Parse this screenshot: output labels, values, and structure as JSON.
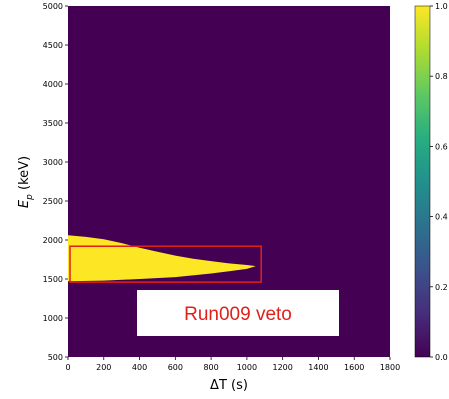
{
  "chart_data": {
    "type": "heatmap",
    "xlabel": "ΔT (s)",
    "ylabel": "E",
    "ylabel_sub": "p",
    "ylabel_unit": " (keV)",
    "xlim": [
      0,
      1800
    ],
    "ylim": [
      500,
      5000
    ],
    "x_ticks": [
      0,
      200,
      400,
      600,
      800,
      1000,
      1200,
      1400,
      1600,
      1800
    ],
    "y_ticks": [
      500,
      1000,
      1500,
      2000,
      2500,
      3000,
      3500,
      4000,
      4500,
      5000
    ],
    "colorbar": {
      "range": [
        0.0,
        1.0
      ],
      "ticks": [
        "0.0",
        "0.2",
        "0.4",
        "0.6",
        "0.8",
        "1.0"
      ],
      "colormap": "viridis"
    },
    "background_value": 0.0,
    "region_value": 1.0,
    "region_colors": {
      "low": "#440154",
      "high": "#fde725"
    },
    "region_boundary": {
      "upper": [
        [
          0,
          2060
        ],
        [
          100,
          2040
        ],
        [
          200,
          2010
        ],
        [
          300,
          1960
        ],
        [
          400,
          1900
        ],
        [
          500,
          1850
        ],
        [
          600,
          1800
        ],
        [
          700,
          1760
        ],
        [
          800,
          1730
        ],
        [
          900,
          1700
        ],
        [
          1000,
          1680
        ],
        [
          1050,
          1665
        ]
      ],
      "lower": [
        [
          0,
          1470
        ],
        [
          200,
          1480
        ],
        [
          400,
          1500
        ],
        [
          600,
          1525
        ],
        [
          800,
          1570
        ],
        [
          900,
          1600
        ],
        [
          1000,
          1630
        ],
        [
          1050,
          1665
        ]
      ]
    },
    "annotation": {
      "box_x": [
        0,
        1080
      ],
      "box_y": [
        1460,
        1920
      ],
      "box_color": "#e0201b",
      "label": "Run009 veto",
      "label_color": "#e0201b"
    }
  }
}
